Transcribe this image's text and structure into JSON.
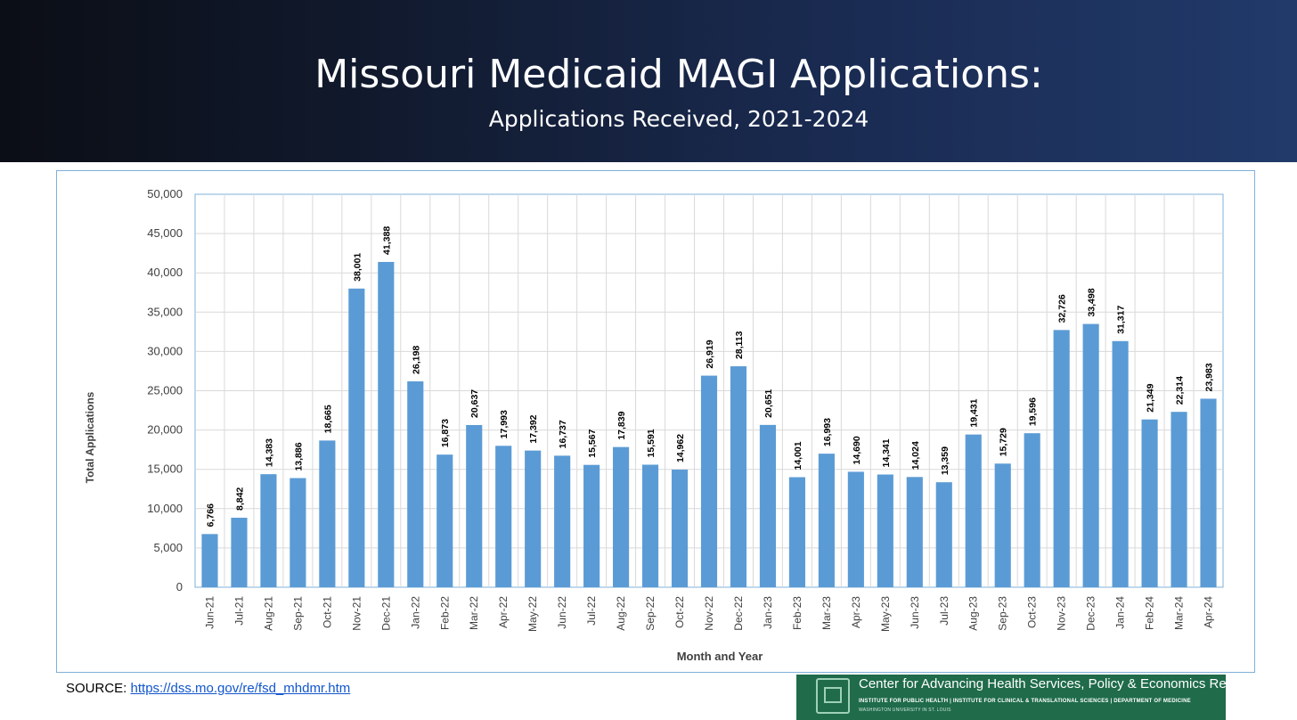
{
  "header": {
    "title": "Missouri Medicaid MAGI Applications:",
    "subtitle": "Applications Received, 2021-2024"
  },
  "source": {
    "label": "SOURCE:",
    "link_text": "https://dss.mo.gov/re/fsd_mhdmr.htm"
  },
  "logo": {
    "icon": "shield-icon",
    "name": "Center for Advancing Health Services, Policy & Economics Research",
    "tagline": "INSTITUTE FOR PUBLIC HEALTH | INSTITUTE FOR CLINICAL & TRANSLATIONAL SCIENCES | DEPARTMENT OF MEDICINE",
    "university": "WASHINGTON UNIVERSITY IN ST. LOUIS",
    "color": "#1f6b4a"
  },
  "chart_data": {
    "type": "bar",
    "title": "",
    "xlabel": "Month and Year",
    "ylabel": "Total Applications",
    "ylim": [
      0,
      50000
    ],
    "yticks": [
      "0",
      "5,000",
      "10,000",
      "15,000",
      "20,000",
      "25,000",
      "30,000",
      "35,000",
      "40,000",
      "45,000",
      "50,000"
    ],
    "grid": true,
    "bar_color": "#5b9bd5",
    "categories": [
      "Jun-21",
      "Jul-21",
      "Aug-21",
      "Sep-21",
      "Oct-21",
      "Nov-21",
      "Dec-21",
      "Jan-22",
      "Feb-22",
      "Mar-22",
      "Apr-22",
      "May-22",
      "Jun-22",
      "Jul-22",
      "Aug-22",
      "Sep-22",
      "Oct-22",
      "Nov-22",
      "Dec-22",
      "Jan-23",
      "Feb-23",
      "Mar-23",
      "Apr-23",
      "May-23",
      "Jun-23",
      "Jul-23",
      "Aug-23",
      "Sep-23",
      "Oct-23",
      "Nov-23",
      "Dec-23",
      "Jan-24",
      "Feb-24",
      "Mar-24",
      "Apr-24"
    ],
    "values": [
      6766,
      8842,
      14383,
      13886,
      18665,
      38001,
      41388,
      26198,
      16873,
      20637,
      17993,
      17392,
      16737,
      15567,
      17839,
      15591,
      14962,
      26919,
      28113,
      20651,
      14001,
      16993,
      14690,
      14341,
      14024,
      13359,
      19431,
      15729,
      19596,
      32726,
      33498,
      31317,
      21349,
      22314,
      23983
    ],
    "data_labels": [
      "6,766",
      "8,842",
      "14,383",
      "13,886",
      "18,665",
      "38,001",
      "41,388",
      "26,198",
      "16,873",
      "20,637",
      "17,993",
      "17,392",
      "16,737",
      "15,567",
      "17,839",
      "15,591",
      "14,962",
      "26,919",
      "28,113",
      "20,651",
      "14,001",
      "16,993",
      "14,690",
      "14,341",
      "14,024",
      "13,359",
      "19,431",
      "15,729",
      "19,596",
      "32,726",
      "33,498",
      "31,317",
      "21,349",
      "22,314",
      "23,983"
    ]
  }
}
